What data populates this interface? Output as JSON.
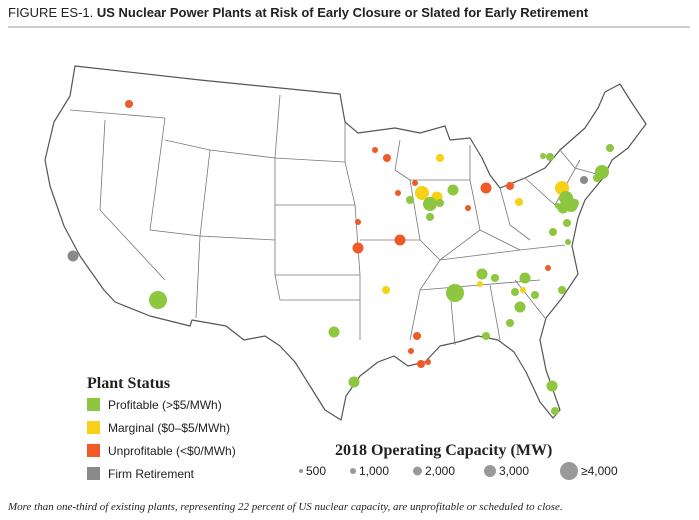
{
  "figure": {
    "label": "FIGURE ES-1.",
    "title": "US Nuclear Power Plants at Risk of Early Closure or Slated for Early Retirement"
  },
  "legend": {
    "title": "Plant Status",
    "items": [
      "Profitable (>$5/MWh)",
      "Marginal ($0–$5/MWh)",
      "Unprofitable (<$0/MWh)",
      "Firm Retirement"
    ]
  },
  "size_legend": {
    "title": "2018 Operating Capacity (MW)",
    "items": [
      "500",
      "1,000",
      "2,000",
      "3,000",
      "≥4,000"
    ]
  },
  "caption": "More than one-third of existing plants, representing 22 percent of US nuclear capacity, are unprofitable or scheduled to close."
}
